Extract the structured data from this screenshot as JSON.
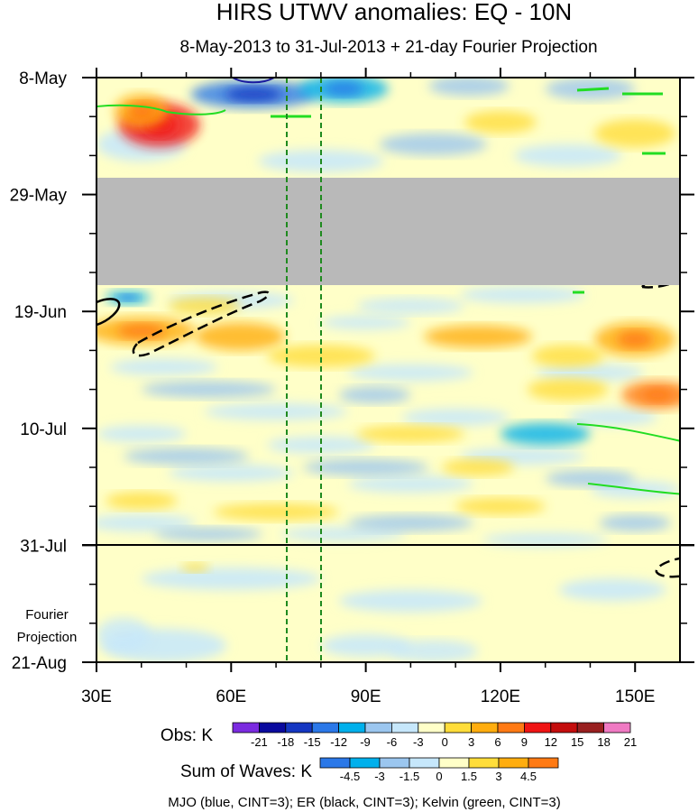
{
  "chart_data": {
    "type": "heatmap",
    "title": "HIRS UTWV anomalies: EQ - 10N",
    "subtitle": "8-May-2013 to 31-Jul-2013 + 21-day Fourier Projection",
    "x_axis": {
      "range": [
        30,
        160
      ],
      "ticks": [
        {
          "value": 30,
          "label": "30E"
        },
        {
          "value": 60,
          "label": "60E"
        },
        {
          "value": 90,
          "label": "90E"
        },
        {
          "value": 120,
          "label": "120E"
        },
        {
          "value": 150,
          "label": "150E"
        }
      ]
    },
    "y_axis": {
      "range_days": [
        0,
        105
      ],
      "direction": "time increases downward",
      "ticks": [
        {
          "day": 0,
          "label": "8-May"
        },
        {
          "day": 21,
          "label": "29-May"
        },
        {
          "day": 42,
          "label": "19-Jun"
        },
        {
          "day": 63,
          "label": "10-Jul"
        },
        {
          "day": 84,
          "label": "31-Jul"
        },
        {
          "day": 105,
          "label": "21-Aug"
        }
      ]
    },
    "observation_end_day": 84,
    "missing_data_days": [
      18.5,
      37.5
    ],
    "fourier_projection_label": [
      "Fourier",
      "Projection"
    ],
    "reference_longitudes": [
      72.5,
      80
    ],
    "obs_colorbar": {
      "label": "Obs: K",
      "levels": [
        -21,
        -18,
        -15,
        -12,
        -9,
        -6,
        -3,
        0,
        3,
        6,
        9,
        12,
        15,
        18,
        21
      ],
      "colors": [
        "#7b2be0",
        "#0a0a9e",
        "#1537c2",
        "#2b78e8",
        "#00b0ec",
        "#9bc6ef",
        "#c6e7fb",
        "#ffffc8",
        "#ffdd3a",
        "#ffad0f",
        "#ff7a14",
        "#f01414",
        "#c40d0d",
        "#992020",
        "#f07ac3"
      ]
    },
    "waves_colorbar": {
      "label": "Sum of Waves: K",
      "levels": [
        -4.5,
        -3,
        -1.5,
        0,
        1.5,
        3,
        4.5
      ],
      "colors": [
        "#2b78e8",
        "#00b0ec",
        "#9bc6ef",
        "#c6e7fb",
        "#ffffc8",
        "#ffdd3a",
        "#ffad0f",
        "#ff7a14"
      ]
    },
    "contours": {
      "mjo": {
        "color": "#1a1a9e"
      },
      "er": {
        "color": "#000000"
      },
      "kelvin": {
        "color": "#22dd22"
      }
    },
    "footnote": "MJO (blue, CINT=3); ER (black, CINT=3); Kelvin (green, CINT=3)",
    "anomaly_blobs": [
      {
        "lon": 44,
        "day": 8.5,
        "rlon": 9,
        "rday": 4,
        "value": 12
      },
      {
        "lon": 40,
        "day": 6,
        "rlon": 6,
        "rday": 3,
        "value": 6
      },
      {
        "lon": 65,
        "day": 3,
        "rlon": 14,
        "rday": 2.5,
        "value": -9
      },
      {
        "lon": 85,
        "day": 2,
        "rlon": 10,
        "rday": 2.5,
        "value": -6
      },
      {
        "lon": 113,
        "day": 1.5,
        "rlon": 9,
        "rday": 1.8,
        "value": -4
      },
      {
        "lon": 140,
        "day": 2,
        "rlon": 10,
        "rday": 2,
        "value": -3
      },
      {
        "lon": 120,
        "day": 8,
        "rlon": 8,
        "rday": 2,
        "value": 4
      },
      {
        "lon": 150,
        "day": 10,
        "rlon": 9,
        "rday": 2.5,
        "value": 4
      },
      {
        "lon": 105,
        "day": 12,
        "rlon": 12,
        "rday": 2,
        "value": -3
      },
      {
        "lon": 40,
        "day": 45.5,
        "rlon": 12,
        "rday": 2.5,
        "value": 6
      },
      {
        "lon": 62,
        "day": 46.5,
        "rlon": 10,
        "rday": 2.5,
        "value": 4.5
      },
      {
        "lon": 54,
        "day": 41,
        "rlon": 8,
        "rday": 1.5,
        "value": 3
      },
      {
        "lon": 37,
        "day": 39.5,
        "rlon": 5,
        "rday": 1.2,
        "value": -6
      },
      {
        "lon": 100,
        "day": 41,
        "rlon": 12,
        "rday": 1.5,
        "value": -2
      },
      {
        "lon": 115,
        "day": 46.5,
        "rlon": 12,
        "rday": 2,
        "value": 4.5
      },
      {
        "lon": 150,
        "day": 47,
        "rlon": 9,
        "rday": 3,
        "value": 6
      },
      {
        "lon": 135,
        "day": 50,
        "rlon": 8,
        "rday": 2,
        "value": 3
      },
      {
        "lon": 80,
        "day": 50,
        "rlon": 12,
        "rday": 2,
        "value": 3
      },
      {
        "lon": 155,
        "day": 57,
        "rlon": 8,
        "rday": 2.5,
        "value": 9
      },
      {
        "lon": 135,
        "day": 56,
        "rlon": 9,
        "rday": 2,
        "value": 3
      },
      {
        "lon": 55,
        "day": 56,
        "rlon": 15,
        "rday": 1.5,
        "value": -3
      },
      {
        "lon": 92,
        "day": 57,
        "rlon": 8,
        "rday": 1.5,
        "value": -3
      },
      {
        "lon": 130,
        "day": 64,
        "rlon": 10,
        "rday": 2,
        "value": -4.5
      },
      {
        "lon": 100,
        "day": 64,
        "rlon": 12,
        "rday": 1.5,
        "value": 3
      },
      {
        "lon": 50,
        "day": 68,
        "rlon": 14,
        "rday": 1.5,
        "value": -3
      },
      {
        "lon": 90,
        "day": 70,
        "rlon": 14,
        "rday": 1.5,
        "value": -3
      },
      {
        "lon": 140,
        "day": 72,
        "rlon": 10,
        "rday": 1.5,
        "value": -3
      },
      {
        "lon": 115,
        "day": 70,
        "rlon": 8,
        "rday": 1.5,
        "value": 3
      },
      {
        "lon": 40,
        "day": 76,
        "rlon": 8,
        "rday": 1.5,
        "value": 3
      },
      {
        "lon": 70,
        "day": 78,
        "rlon": 14,
        "rday": 1.5,
        "value": 3
      },
      {
        "lon": 120,
        "day": 77,
        "rlon": 10,
        "rday": 1.5,
        "value": 3
      },
      {
        "lon": 100,
        "day": 80,
        "rlon": 14,
        "rday": 1.5,
        "value": -3
      },
      {
        "lon": 150,
        "day": 80,
        "rlon": 8,
        "rday": 1.5,
        "value": -3
      },
      {
        "lon": 55,
        "day": 82,
        "rlon": 12,
        "rday": 1.2,
        "value": -3
      },
      {
        "lon": 52,
        "day": 88,
        "rlon": 3,
        "rday": 0.8,
        "value": 3
      },
      {
        "lon": 36,
        "day": 100,
        "rlon": 6,
        "rday": 3,
        "value": -1.5
      },
      {
        "lon": 105,
        "day": 103,
        "rlon": 10,
        "rday": 2,
        "value": -1.5
      }
    ]
  }
}
